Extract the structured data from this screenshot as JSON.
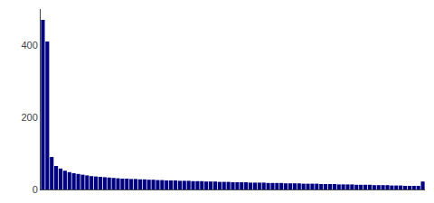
{
  "chart_data": {
    "type": "bar",
    "values": [
      470,
      410,
      90,
      65,
      58,
      52,
      48,
      45,
      43,
      41,
      39,
      37,
      36,
      35,
      34,
      33,
      32,
      31,
      30,
      30,
      29,
      29,
      28,
      28,
      27,
      27,
      26,
      26,
      25,
      25,
      25,
      24,
      24,
      24,
      23,
      23,
      23,
      22,
      22,
      22,
      21,
      21,
      21,
      20,
      20,
      20,
      20,
      19,
      19,
      19,
      19,
      18,
      18,
      18,
      18,
      17,
      17,
      17,
      17,
      16,
      16,
      16,
      16,
      15,
      15,
      15,
      15,
      14,
      14,
      14,
      14,
      13,
      13,
      13,
      13,
      12,
      12,
      12,
      12,
      11,
      11,
      11,
      10,
      10,
      10,
      10,
      22
    ],
    "color": "#000080",
    "ylim": [
      0,
      500
    ],
    "yticks": [
      0,
      200,
      400
    ],
    "grid": false,
    "tick_labels": "y"
  }
}
